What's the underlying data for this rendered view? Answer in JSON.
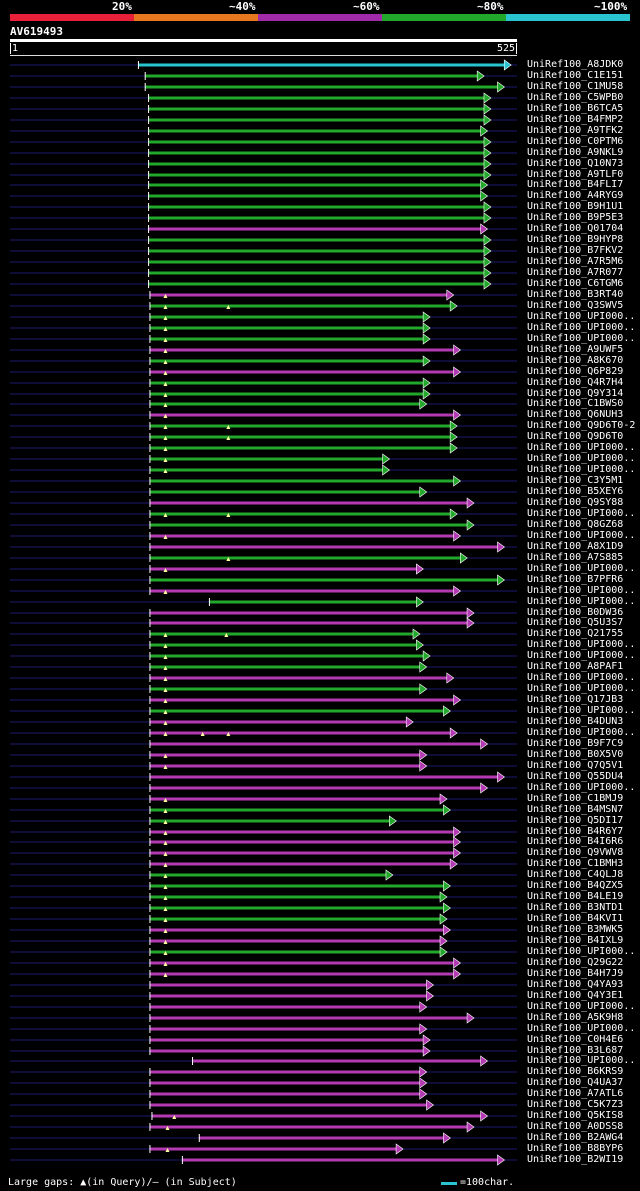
{
  "legend": {
    "labels": [
      "20%",
      "~40%",
      "~60%",
      "~80%",
      "~100%"
    ],
    "colors": [
      "#e8203a",
      "#e87820",
      "#a02aa8",
      "#22a82a",
      "#29c4d0"
    ]
  },
  "query": {
    "name": "AV619493",
    "start": "1",
    "end": "525",
    "length": 525
  },
  "colors": {
    "cyan": "#29c4d0",
    "green": "#22a82a",
    "magenta": "#b43ab4",
    "backbone": "#1a1a6e"
  },
  "hits": [
    {
      "label": "UniRef100_A8JDK0",
      "start": 190,
      "end": 740,
      "color": "cyan"
    },
    {
      "label": "UniRef100_C1E151",
      "start": 200,
      "end": 700,
      "color": "green"
    },
    {
      "label": "UniRef100_C1MU58",
      "start": 200,
      "end": 730,
      "color": "green"
    },
    {
      "label": "UniRef100_C5WPB0",
      "start": 205,
      "end": 710,
      "color": "green"
    },
    {
      "label": "UniRef100_B6TCA5",
      "start": 205,
      "end": 710,
      "color": "green"
    },
    {
      "label": "UniRef100_B4FMP2",
      "start": 205,
      "end": 710,
      "color": "green"
    },
    {
      "label": "UniRef100_A9TFK2",
      "start": 205,
      "end": 705,
      "color": "green"
    },
    {
      "label": "UniRef100_C0PTM6",
      "start": 205,
      "end": 710,
      "color": "green"
    },
    {
      "label": "UniRef100_A9NKL9",
      "start": 205,
      "end": 710,
      "color": "green"
    },
    {
      "label": "UniRef100_Q10N73",
      "start": 205,
      "end": 710,
      "color": "green"
    },
    {
      "label": "UniRef100_A9TLF0",
      "start": 205,
      "end": 710,
      "color": "green"
    },
    {
      "label": "UniRef100_B4FLI7",
      "start": 205,
      "end": 705,
      "color": "green"
    },
    {
      "label": "UniRef100_A4RYG9",
      "start": 205,
      "end": 705,
      "color": "green"
    },
    {
      "label": "UniRef100_B9H1U1",
      "start": 205,
      "end": 710,
      "color": "green"
    },
    {
      "label": "UniRef100_B9P5E3",
      "start": 205,
      "end": 710,
      "color": "green"
    },
    {
      "label": "UniRef100_Q01704",
      "start": 205,
      "end": 705,
      "color": "magenta"
    },
    {
      "label": "UniRef100_B9HYP8",
      "start": 205,
      "end": 710,
      "color": "green"
    },
    {
      "label": "UniRef100_B7FKV2",
      "start": 205,
      "end": 710,
      "color": "green"
    },
    {
      "label": "UniRef100_A7R5M6",
      "start": 205,
      "end": 710,
      "color": "green"
    },
    {
      "label": "UniRef100_A7R077",
      "start": 205,
      "end": 710,
      "color": "green"
    },
    {
      "label": "UniRef100_C6TGM6",
      "start": 205,
      "end": 710,
      "color": "green"
    },
    {
      "label": "UniRef100_B3RT40",
      "start": 207,
      "end": 655,
      "color": "magenta",
      "gaps": [
        230
      ]
    },
    {
      "label": "UniRef100_Q3SWV5",
      "start": 207,
      "end": 660,
      "color": "green",
      "gaps": [
        230,
        323
      ]
    },
    {
      "label": "UniRef100_UPI000..",
      "start": 207,
      "end": 620,
      "color": "green",
      "gaps": [
        230
      ]
    },
    {
      "label": "UniRef100_UPI000..",
      "start": 207,
      "end": 620,
      "color": "green",
      "gaps": [
        230
      ]
    },
    {
      "label": "UniRef100_UPI000..",
      "start": 207,
      "end": 620,
      "color": "green",
      "gaps": [
        230
      ]
    },
    {
      "label": "UniRef100_A9UWF5",
      "start": 207,
      "end": 665,
      "color": "magenta",
      "gaps": [
        230
      ]
    },
    {
      "label": "UniRef100_A8K670",
      "start": 207,
      "end": 620,
      "color": "green",
      "gaps": [
        230
      ]
    },
    {
      "label": "UniRef100_Q6P829",
      "start": 207,
      "end": 665,
      "color": "magenta",
      "gaps": [
        230
      ]
    },
    {
      "label": "UniRef100_Q4R7H4",
      "start": 207,
      "end": 620,
      "color": "green",
      "gaps": [
        230
      ]
    },
    {
      "label": "UniRef100_Q9Y314",
      "start": 207,
      "end": 620,
      "color": "green",
      "gaps": [
        230
      ]
    },
    {
      "label": "UniRef100_C1BWS0",
      "start": 207,
      "end": 615,
      "color": "green",
      "gaps": [
        230
      ]
    },
    {
      "label": "UniRef100_Q6NUH3",
      "start": 207,
      "end": 665,
      "color": "magenta",
      "gaps": [
        230
      ]
    },
    {
      "label": "UniRef100_Q9D6T0-2",
      "start": 207,
      "end": 660,
      "color": "green",
      "gaps": [
        230,
        323
      ]
    },
    {
      "label": "UniRef100_Q9D6T0",
      "start": 207,
      "end": 660,
      "color": "green",
      "gaps": [
        230,
        323
      ]
    },
    {
      "label": "UniRef100_UPI000..",
      "start": 207,
      "end": 660,
      "color": "green",
      "gaps": [
        230
      ]
    },
    {
      "label": "UniRef100_UPI000..",
      "start": 207,
      "end": 560,
      "color": "green",
      "gaps": [
        230
      ]
    },
    {
      "label": "UniRef100_UPI000..",
      "start": 207,
      "end": 560,
      "color": "green",
      "gaps": [
        230
      ]
    },
    {
      "label": "UniRef100_C3Y5M1",
      "start": 207,
      "end": 665,
      "color": "green"
    },
    {
      "label": "UniRef100_B5XEY6",
      "start": 207,
      "end": 615,
      "color": "green"
    },
    {
      "label": "UniRef100_Q9SY88",
      "start": 207,
      "end": 685,
      "color": "magenta"
    },
    {
      "label": "UniRef100_UPI000..",
      "start": 207,
      "end": 660,
      "color": "green",
      "gaps": [
        230,
        323
      ]
    },
    {
      "label": "UniRef100_Q8GZ68",
      "start": 207,
      "end": 685,
      "color": "green"
    },
    {
      "label": "UniRef100_UPI000..",
      "start": 207,
      "end": 665,
      "color": "magenta",
      "gaps": [
        230
      ]
    },
    {
      "label": "UniRef100_A8X1D9",
      "start": 207,
      "end": 730,
      "color": "magenta"
    },
    {
      "label": "UniRef100_A7S885",
      "start": 207,
      "end": 675,
      "color": "green",
      "gaps": [
        323
      ]
    },
    {
      "label": "UniRef100_UPI000..",
      "start": 207,
      "end": 610,
      "color": "magenta",
      "gaps": [
        230
      ]
    },
    {
      "label": "UniRef100_B7PFR6",
      "start": 207,
      "end": 730,
      "color": "green"
    },
    {
      "label": "UniRef100_UPI000..",
      "start": 207,
      "end": 665,
      "color": "magenta",
      "gaps": [
        230
      ]
    },
    {
      "label": "UniRef100_UPI000..",
      "start": 295,
      "end": 610,
      "color": "green"
    },
    {
      "label": "UniRef100_B0DW36",
      "start": 207,
      "end": 685,
      "color": "magenta"
    },
    {
      "label": "UniRef100_Q5U3S7",
      "start": 207,
      "end": 685,
      "color": "magenta"
    },
    {
      "label": "UniRef100_Q21755",
      "start": 207,
      "end": 605,
      "color": "green",
      "gaps": [
        230,
        320
      ]
    },
    {
      "label": "UniRef100_UPI000..",
      "start": 207,
      "end": 610,
      "color": "green",
      "gaps": [
        230
      ]
    },
    {
      "label": "UniRef100_UPI000..",
      "start": 207,
      "end": 620,
      "color": "green",
      "gaps": [
        230
      ]
    },
    {
      "label": "UniRef100_A8PAF1",
      "start": 207,
      "end": 615,
      "color": "green",
      "gaps": [
        230
      ]
    },
    {
      "label": "UniRef100_UPI000..",
      "start": 207,
      "end": 655,
      "color": "magenta",
      "gaps": [
        230
      ]
    },
    {
      "label": "UniRef100_UPI000..",
      "start": 207,
      "end": 615,
      "color": "green",
      "gaps": [
        230
      ]
    },
    {
      "label": "UniRef100_Q17JB3",
      "start": 207,
      "end": 665,
      "color": "magenta",
      "gaps": [
        230
      ]
    },
    {
      "label": "UniRef100_UPI000..",
      "start": 207,
      "end": 650,
      "color": "green",
      "gaps": [
        230
      ]
    },
    {
      "label": "UniRef100_B4DUN3",
      "start": 207,
      "end": 595,
      "color": "magenta",
      "gaps": [
        230
      ]
    },
    {
      "label": "UniRef100_UPI000..",
      "start": 207,
      "end": 660,
      "color": "magenta",
      "gaps": [
        230,
        285,
        323
      ]
    },
    {
      "label": "UniRef100_B9F7C9",
      "start": 207,
      "end": 705,
      "color": "magenta"
    },
    {
      "label": "UniRef100_B0X5V0",
      "start": 207,
      "end": 615,
      "color": "magenta",
      "gaps": [
        230
      ]
    },
    {
      "label": "UniRef100_Q7Q5V1",
      "start": 207,
      "end": 615,
      "color": "magenta",
      "gaps": [
        230
      ]
    },
    {
      "label": "UniRef100_Q55DU4",
      "start": 207,
      "end": 730,
      "color": "magenta"
    },
    {
      "label": "UniRef100_UPI000..",
      "start": 207,
      "end": 705,
      "color": "magenta"
    },
    {
      "label": "UniRef100_C1BMJ9",
      "start": 207,
      "end": 645,
      "color": "magenta",
      "gaps": [
        230
      ]
    },
    {
      "label": "UniRef100_B4MSN7",
      "start": 207,
      "end": 650,
      "color": "green",
      "gaps": [
        230
      ]
    },
    {
      "label": "UniRef100_Q5DI17",
      "start": 207,
      "end": 570,
      "color": "green",
      "gaps": [
        230
      ]
    },
    {
      "label": "UniRef100_B4R6Y7",
      "start": 207,
      "end": 665,
      "color": "magenta",
      "gaps": [
        230
      ]
    },
    {
      "label": "UniRef100_B4I6R6",
      "start": 207,
      "end": 665,
      "color": "magenta",
      "gaps": [
        230
      ]
    },
    {
      "label": "UniRef100_Q9VWV8",
      "start": 207,
      "end": 665,
      "color": "magenta",
      "gaps": [
        230
      ]
    },
    {
      "label": "UniRef100_C1BMH3",
      "start": 207,
      "end": 660,
      "color": "magenta",
      "gaps": [
        230
      ]
    },
    {
      "label": "UniRef100_C4QLJ8",
      "start": 207,
      "end": 565,
      "color": "green",
      "gaps": [
        230
      ]
    },
    {
      "label": "UniRef100_B4QZX5",
      "start": 207,
      "end": 650,
      "color": "green",
      "gaps": [
        230
      ]
    },
    {
      "label": "UniRef100_B4LE19",
      "start": 207,
      "end": 645,
      "color": "green",
      "gaps": [
        230
      ]
    },
    {
      "label": "UniRef100_B3NTD1",
      "start": 207,
      "end": 650,
      "color": "green",
      "gaps": [
        230
      ]
    },
    {
      "label": "UniRef100_B4KVI1",
      "start": 207,
      "end": 645,
      "color": "green",
      "gaps": [
        230
      ]
    },
    {
      "label": "UniRef100_B3MWK5",
      "start": 207,
      "end": 650,
      "color": "magenta",
      "gaps": [
        230
      ]
    },
    {
      "label": "UniRef100_B4IXL9",
      "start": 207,
      "end": 645,
      "color": "magenta",
      "gaps": [
        230
      ]
    },
    {
      "label": "UniRef100_UPI000..",
      "start": 207,
      "end": 645,
      "color": "green",
      "gaps": [
        230
      ]
    },
    {
      "label": "UniRef100_Q29G22",
      "start": 207,
      "end": 665,
      "color": "magenta",
      "gaps": [
        230
      ]
    },
    {
      "label": "UniRef100_B4H7J9",
      "start": 207,
      "end": 665,
      "color": "magenta",
      "gaps": [
        230
      ]
    },
    {
      "label": "UniRef100_Q4YA93",
      "start": 207,
      "end": 625,
      "color": "magenta"
    },
    {
      "label": "UniRef100_Q4Y3E1",
      "start": 207,
      "end": 625,
      "color": "magenta"
    },
    {
      "label": "UniRef100_UPI000..",
      "start": 207,
      "end": 615,
      "color": "magenta"
    },
    {
      "label": "UniRef100_A5K9H8",
      "start": 207,
      "end": 685,
      "color": "magenta"
    },
    {
      "label": "UniRef100_UPI000..",
      "start": 207,
      "end": 615,
      "color": "magenta"
    },
    {
      "label": "UniRef100_C0H4E6",
      "start": 207,
      "end": 620,
      "color": "magenta"
    },
    {
      "label": "UniRef100_B3L687",
      "start": 207,
      "end": 620,
      "color": "magenta"
    },
    {
      "label": "UniRef100_UPI000..",
      "start": 270,
      "end": 705,
      "color": "magenta"
    },
    {
      "label": "UniRef100_B6KRS9",
      "start": 207,
      "end": 615,
      "color": "magenta"
    },
    {
      "label": "UniRef100_Q4UA37",
      "start": 207,
      "end": 615,
      "color": "magenta"
    },
    {
      "label": "UniRef100_A7ATL6",
      "start": 207,
      "end": 615,
      "color": "magenta"
    },
    {
      "label": "UniRef100_C5K7Z3",
      "start": 207,
      "end": 625,
      "color": "magenta"
    },
    {
      "label": "UniRef100_Q5KIS8",
      "start": 210,
      "end": 705,
      "color": "magenta",
      "gaps": [
        243
      ]
    },
    {
      "label": "UniRef100_A0DSS8",
      "start": 207,
      "end": 685,
      "color": "magenta",
      "gaps": [
        233
      ]
    },
    {
      "label": "UniRef100_B2AWG4",
      "start": 280,
      "end": 650,
      "color": "magenta"
    },
    {
      "label": "UniRef100_B8BYP6",
      "start": 207,
      "end": 580,
      "color": "magenta",
      "gaps": [
        233
      ]
    },
    {
      "label": "UniRef100_B2WI19",
      "start": 255,
      "end": 730,
      "color": "magenta"
    }
  ],
  "footer": {
    "gaps_text": "Large gaps: ▲(in Query)/– (in Subject)",
    "scale_text": "=100char."
  }
}
